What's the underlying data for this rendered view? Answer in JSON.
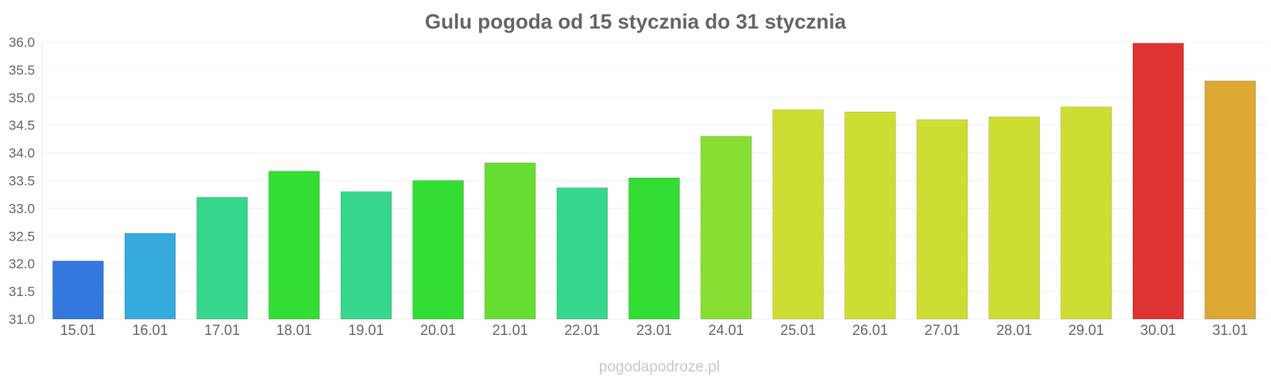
{
  "chart_data": {
    "type": "bar",
    "title": "Gulu pogoda od 15 stycznia do 31 stycznia",
    "xlabel": "",
    "ylabel": "",
    "ylim": [
      31.0,
      36.0
    ],
    "yticks": [
      "31.0",
      "31.5",
      "32.0",
      "32.5",
      "33.0",
      "33.5",
      "34.0",
      "34.5",
      "35.0",
      "35.5",
      "36.0"
    ],
    "grid": true,
    "categories": [
      "15.01",
      "16.01",
      "17.01",
      "18.01",
      "19.01",
      "20.01",
      "21.01",
      "22.01",
      "23.01",
      "24.01",
      "25.01",
      "26.01",
      "27.01",
      "28.01",
      "29.01",
      "30.01",
      "31.01"
    ],
    "values": [
      32.05,
      32.55,
      33.2,
      33.67,
      33.3,
      33.5,
      33.82,
      33.37,
      33.55,
      34.3,
      34.78,
      34.74,
      34.6,
      34.65,
      34.83,
      35.98,
      35.3
    ],
    "colors": [
      "#3377dd",
      "#36aadd",
      "#36d68c",
      "#33dd33",
      "#36d68c",
      "#33dd33",
      "#66dd33",
      "#36d68c",
      "#33dd33",
      "#88dd33",
      "#ccdd33",
      "#ccdd33",
      "#ccdd33",
      "#ccdd33",
      "#ccdd33",
      "#dd3333",
      "#dda733"
    ]
  },
  "credit": "pogodapodroze.pl"
}
